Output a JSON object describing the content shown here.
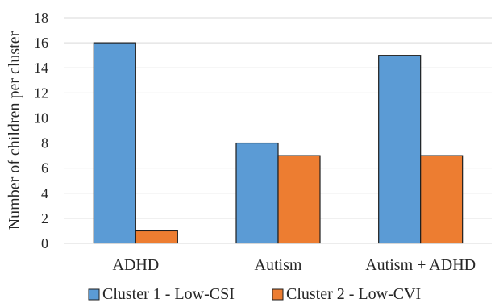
{
  "chart_data": {
    "type": "bar",
    "categories": [
      "ADHD",
      "Autism",
      "Autism + ADHD"
    ],
    "series": [
      {
        "name": "Cluster 1 - Low-CSI",
        "values": [
          16,
          8,
          15
        ],
        "color": "#5B9BD5"
      },
      {
        "name": "Cluster 2 - Low-CVI",
        "values": [
          1,
          7,
          7
        ],
        "color": "#ED7D31"
      }
    ],
    "ylabel": "Number of children per cluster",
    "xlabel": "",
    "ylim": [
      0,
      18
    ],
    "yticks": [
      0,
      2,
      4,
      6,
      8,
      10,
      12,
      14,
      16,
      18
    ],
    "grid": true,
    "legend_position": "bottom"
  }
}
